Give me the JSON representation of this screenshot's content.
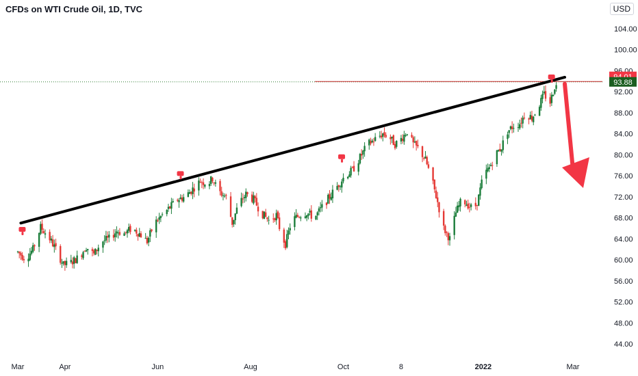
{
  "header": {
    "title": "CFDs on WTI Crude Oil, 1D, TVC",
    "currency": "USD"
  },
  "price_labels": {
    "high": "94.01",
    "high_color": "#f23645",
    "last": "93.88",
    "last_color": "#1b5e20"
  },
  "chart_data": {
    "type": "candlestick",
    "title": "CFDs on WTI Crude Oil, 1D, TVC",
    "ylim": [
      42,
      110
    ],
    "y_ticks": [
      "104.00",
      "100.00",
      "96.00",
      "92.00",
      "88.00",
      "84.00",
      "80.00",
      "76.00",
      "72.00",
      "68.00",
      "64.00",
      "60.00",
      "56.00",
      "52.00",
      "48.00",
      "44.00"
    ],
    "x_ticks": [
      {
        "label": "Mar",
        "day": 0,
        "bold": false
      },
      {
        "label": "Apr",
        "day": 31,
        "bold": false
      },
      {
        "label": "Jun",
        "day": 92,
        "bold": false
      },
      {
        "label": "Aug",
        "day": 153,
        "bold": false
      },
      {
        "label": "Oct",
        "day": 214,
        "bold": false
      },
      {
        "label": "8",
        "day": 252,
        "bold": false
      },
      {
        "label": "2022",
        "day": 306,
        "bold": true
      },
      {
        "label": "Mar",
        "day": 365,
        "bold": false
      }
    ],
    "path_anchors": [
      [
        0,
        61.5
      ],
      [
        5,
        60.2
      ],
      [
        10,
        62.0
      ],
      [
        15,
        66.2
      ],
      [
        20,
        64.5
      ],
      [
        25,
        62.0
      ],
      [
        30,
        59.0
      ],
      [
        35,
        59.5
      ],
      [
        40,
        60.5
      ],
      [
        45,
        62.5
      ],
      [
        50,
        61.0
      ],
      [
        55,
        63.5
      ],
      [
        60,
        64.0
      ],
      [
        65,
        65.5
      ],
      [
        70,
        65.0
      ],
      [
        75,
        66.0
      ],
      [
        80,
        65.0
      ],
      [
        85,
        63.5
      ],
      [
        90,
        67.0
      ],
      [
        95,
        68.5
      ],
      [
        100,
        70.0
      ],
      [
        105,
        71.5
      ],
      [
        110,
        72.0
      ],
      [
        115,
        73.5
      ],
      [
        120,
        75.0
      ],
      [
        125,
        74.5
      ],
      [
        128,
        75.5
      ],
      [
        132,
        73.0
      ],
      [
        137,
        72.0
      ],
      [
        141,
        67.0
      ],
      [
        145,
        70.5
      ],
      [
        150,
        72.5
      ],
      [
        155,
        71.5
      ],
      [
        160,
        69.0
      ],
      [
        165,
        67.5
      ],
      [
        170,
        68.5
      ],
      [
        173,
        65.0
      ],
      [
        176,
        63.0
      ],
      [
        180,
        67.5
      ],
      [
        185,
        68.5
      ],
      [
        190,
        69.0
      ],
      [
        195,
        68.0
      ],
      [
        200,
        70.0
      ],
      [
        205,
        72.0
      ],
      [
        210,
        74.0
      ],
      [
        215,
        76.0
      ],
      [
        220,
        77.0
      ],
      [
        225,
        79.5
      ],
      [
        230,
        82.0
      ],
      [
        235,
        83.0
      ],
      [
        240,
        84.0
      ],
      [
        244,
        83.5
      ],
      [
        248,
        82.0
      ],
      [
        252,
        83.0
      ],
      [
        256,
        84.5
      ],
      [
        260,
        82.0
      ],
      [
        264,
        81.0
      ],
      [
        268,
        79.0
      ],
      [
        272,
        75.5
      ],
      [
        276,
        71.0
      ],
      [
        280,
        66.0
      ],
      [
        284,
        64.0
      ],
      [
        288,
        69.0
      ],
      [
        292,
        71.5
      ],
      [
        296,
        70.5
      ],
      [
        300,
        69.5
      ],
      [
        303,
        72.0
      ],
      [
        306,
        76.0
      ],
      [
        310,
        77.5
      ],
      [
        314,
        80.0
      ],
      [
        318,
        81.5
      ],
      [
        322,
        84.5
      ],
      [
        326,
        85.5
      ],
      [
        330,
        86.0
      ],
      [
        334,
        88.0
      ],
      [
        338,
        87.0
      ],
      [
        342,
        89.0
      ],
      [
        346,
        91.5
      ],
      [
        350,
        90.0
      ],
      [
        353,
        93.0
      ]
    ],
    "trendline": {
      "start": [
        2,
        67.0
      ],
      "end": [
        356,
        94.5
      ]
    },
    "flags_at_days": [
      2,
      106,
      212,
      350
    ],
    "forecast_arrow": {
      "from": [
        356,
        93.5
      ],
      "to": [
        380,
        73.0
      ],
      "color": "#f23645"
    },
    "resistance_level": 93.88,
    "up_color": "#1b7d3a",
    "down_color": "#e53935",
    "grid": false,
    "legend": "none"
  }
}
